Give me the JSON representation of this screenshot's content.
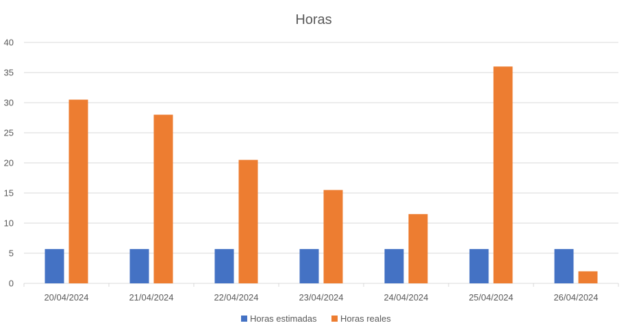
{
  "chart_data": {
    "type": "bar",
    "title": "Horas",
    "xlabel": "",
    "ylabel": "",
    "categories": [
      "20/04/2024",
      "21/04/2024",
      "22/04/2024",
      "23/04/2024",
      "24/04/2024",
      "25/04/2024",
      "26/04/2024"
    ],
    "series": [
      {
        "name": "Horas estimadas",
        "color": "#4472c4",
        "values": [
          5.7,
          5.7,
          5.7,
          5.7,
          5.7,
          5.7,
          5.7
        ]
      },
      {
        "name": "Horas reales",
        "color": "#ed7d31",
        "values": [
          30.5,
          28,
          20.5,
          15.5,
          11.5,
          36,
          2
        ]
      }
    ],
    "ylim": [
      0,
      40
    ],
    "yticks": [
      0,
      5,
      10,
      15,
      20,
      25,
      30,
      35,
      40
    ],
    "grid": true,
    "legend_position": "bottom"
  }
}
